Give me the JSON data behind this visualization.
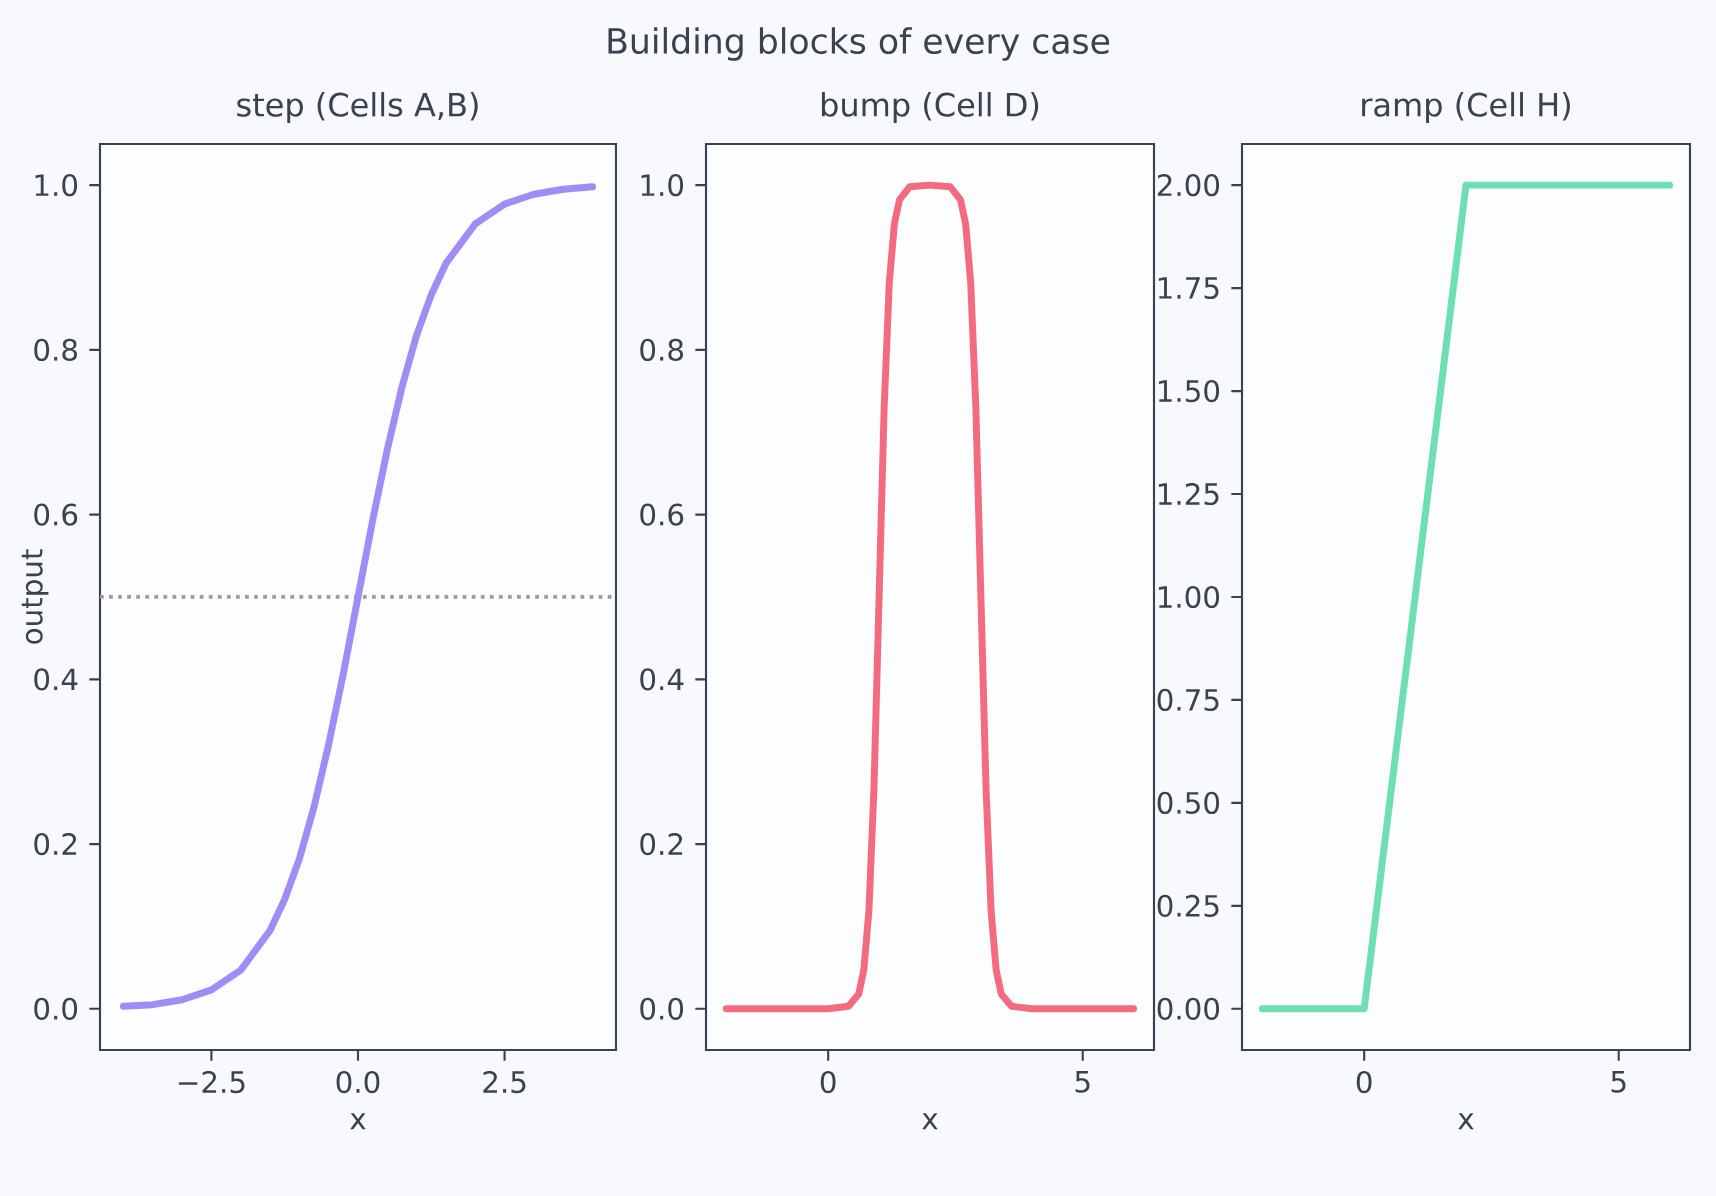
{
  "chart_data": [
    {
      "type": "line",
      "title": "step  (Cells A,B)",
      "xlabel": "x",
      "ylabel": "output",
      "annotations": [
        "Building blocks of every case"
      ],
      "x": [
        -4,
        -3.5,
        -3,
        -2.5,
        -2,
        -1.5,
        -1.25,
        -1,
        -0.75,
        -0.5,
        -0.25,
        0,
        0.25,
        0.5,
        0.75,
        1,
        1.25,
        1.5,
        2,
        2.5,
        3,
        3.5,
        4
      ],
      "series": [
        {
          "color": "#a18cf5",
          "values": [
            0.003,
            0.005,
            0.011,
            0.023,
            0.047,
            0.095,
            0.133,
            0.182,
            0.245,
            0.321,
            0.407,
            0.5,
            0.593,
            0.679,
            0.755,
            0.818,
            0.867,
            0.905,
            0.953,
            0.977,
            0.989,
            0.995,
            0.998
          ]
        }
      ],
      "xlim": [
        -4.4,
        4.4
      ],
      "ylim": [
        -0.05,
        1.05
      ],
      "xticks": [
        {
          "value": -2.5,
          "label": "−2.5"
        },
        {
          "value": 0,
          "label": "0.0"
        },
        {
          "value": 2.5,
          "label": "2.5"
        }
      ],
      "yticks": [
        {
          "value": 0,
          "label": "0.0"
        },
        0.2,
        0.4,
        0.6,
        0.8,
        {
          "value": 1,
          "label": "1.0"
        }
      ],
      "ref_lines": [
        {
          "axis": "y",
          "value": 0.5,
          "color": "#9a9aa2",
          "line_style": "dotted"
        }
      ],
      "line_style": "solid"
    },
    {
      "type": "line",
      "title": "bump (Cell D)",
      "xlabel": "x",
      "x": [
        -2,
        0,
        0.4,
        0.6,
        0.7,
        0.8,
        0.9,
        1.0,
        1.1,
        1.2,
        1.3,
        1.4,
        1.6,
        2,
        2.4,
        2.6,
        2.7,
        2.8,
        2.9,
        3.0,
        3.1,
        3.2,
        3.3,
        3.4,
        3.6,
        4,
        6
      ],
      "series": [
        {
          "color": "#f26b80",
          "values": [
            0,
            0,
            0.003,
            0.018,
            0.047,
            0.119,
            0.269,
            0.5,
            0.731,
            0.881,
            0.953,
            0.982,
            0.998,
            1,
            0.998,
            0.982,
            0.953,
            0.881,
            0.731,
            0.5,
            0.269,
            0.119,
            0.047,
            0.018,
            0.003,
            0,
            0
          ]
        }
      ],
      "xlim": [
        -2.4,
        6.4
      ],
      "ylim": [
        -0.05,
        1.05
      ],
      "xticks": [
        0,
        5
      ],
      "yticks": [
        {
          "value": 0,
          "label": "0.0"
        },
        0.2,
        0.4,
        0.6,
        0.8,
        {
          "value": 1,
          "label": "1.0"
        }
      ],
      "line_style": "solid"
    },
    {
      "type": "line",
      "title": "ramp (Cell H)",
      "xlabel": "x",
      "x": [
        -2,
        0,
        2,
        6
      ],
      "series": [
        {
          "color": "#6ddfb0",
          "values": [
            0,
            0,
            2,
            2
          ]
        }
      ],
      "xlim": [
        -2.4,
        6.4
      ],
      "ylim": [
        -0.1,
        2.1
      ],
      "xticks": [
        0,
        5
      ],
      "yticks": [
        {
          "value": 0,
          "label": "0.00"
        },
        0.25,
        {
          "value": 0.5,
          "label": "0.50"
        },
        0.75,
        {
          "value": 1,
          "label": "1.00"
        },
        1.25,
        {
          "value": 1.5,
          "label": "1.50"
        },
        1.75,
        {
          "value": 2,
          "label": "2.00"
        }
      ],
      "line_style": "solid"
    }
  ]
}
